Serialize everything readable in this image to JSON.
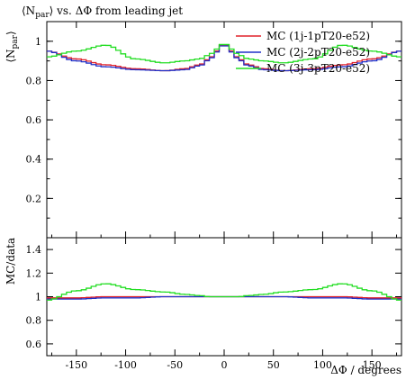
{
  "chart_data": {
    "type": "line",
    "title": "⟨N_par⟩ vs. ΔΦ from leading jet",
    "xlabel": "ΔΦ / degrees",
    "ylabel_main": "⟨N_par⟩",
    "ylabel_ratio": "MC/data",
    "x_range": [
      -180,
      180
    ],
    "y_range_main": [
      0,
      1.1
    ],
    "y_range_ratio": [
      0.5,
      1.5
    ],
    "x_ticks": [
      -150,
      -100,
      -50,
      0,
      50,
      100,
      150
    ],
    "x_tick_labels": [
      "-150",
      "-100",
      "-50",
      "0",
      "50",
      "100",
      "150"
    ],
    "y_ticks_main": [
      0.2,
      0.4,
      0.6,
      0.8,
      1
    ],
    "y_tick_labels_main": [
      "0.2",
      "0.4",
      "0.6",
      "0.8",
      "1"
    ],
    "y_ticks_ratio": [
      0.6,
      0.8,
      1,
      1.2,
      1.4
    ],
    "y_tick_labels_ratio": [
      "0.6",
      "0.8",
      "1",
      "1.2",
      "1.4"
    ],
    "legend_position": "top-right",
    "x": [
      -180,
      -150,
      -120,
      -90,
      -60,
      -40,
      -25,
      -15,
      -8,
      0,
      8,
      15,
      25,
      40,
      60,
      90,
      120,
      150,
      180
    ],
    "series": [
      {
        "name": "MC (1j-1pT20-e52)",
        "color": "#e0202a",
        "values": [
          0.95,
          0.91,
          0.88,
          0.86,
          0.85,
          0.86,
          0.88,
          0.91,
          0.95,
          0.99,
          0.95,
          0.91,
          0.88,
          0.86,
          0.85,
          0.86,
          0.88,
          0.91,
          0.95
        ],
        "ratio": [
          0.99,
          0.99,
          1.0,
          1.0,
          1.0,
          1.0,
          1.0,
          1.0,
          1.0,
          1.0,
          1.0,
          1.0,
          1.0,
          1.0,
          1.0,
          1.0,
          1.0,
          0.99,
          0.99
        ]
      },
      {
        "name": "MC (2j-2pT20-e52)",
        "color": "#2030c8",
        "values": [
          0.95,
          0.9,
          0.87,
          0.855,
          0.85,
          0.855,
          0.875,
          0.905,
          0.945,
          0.985,
          0.945,
          0.905,
          0.875,
          0.855,
          0.85,
          0.855,
          0.87,
          0.9,
          0.95
        ],
        "ratio": [
          0.98,
          0.98,
          0.99,
          0.99,
          1.0,
          1.0,
          1.0,
          1.0,
          1.0,
          1.0,
          1.0,
          1.0,
          1.0,
          1.0,
          1.0,
          0.99,
          0.99,
          0.98,
          0.98
        ]
      },
      {
        "name": "MC (3j-3pT20-e52)",
        "color": "#22dd22",
        "values": [
          0.92,
          0.95,
          0.98,
          0.91,
          0.89,
          0.9,
          0.91,
          0.93,
          0.96,
          0.99,
          0.96,
          0.93,
          0.91,
          0.9,
          0.89,
          0.91,
          0.98,
          0.95,
          0.92
        ],
        "ratio": [
          0.97,
          1.05,
          1.11,
          1.06,
          1.04,
          1.02,
          1.01,
          1.0,
          1.0,
          1.0,
          1.0,
          1.0,
          1.01,
          1.02,
          1.04,
          1.06,
          1.11,
          1.05,
          0.97
        ]
      }
    ]
  }
}
